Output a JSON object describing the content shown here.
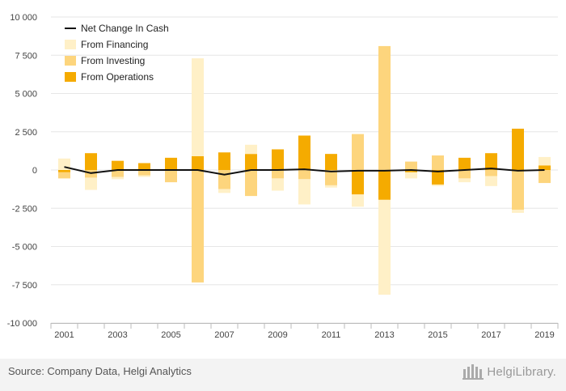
{
  "chart_data": {
    "type": "bar",
    "stacked": true,
    "categories": [
      "2001",
      "2002",
      "2003",
      "2004",
      "2005",
      "2006",
      "2007",
      "2008",
      "2009",
      "2010",
      "2011",
      "2012",
      "2013",
      "2014",
      "2015",
      "2016",
      "2017",
      "2018",
      "2019"
    ],
    "x_tick_labels": [
      "2001",
      "2003",
      "2005",
      "2007",
      "2009",
      "2011",
      "2013",
      "2015",
      "2017",
      "2019"
    ],
    "ylim": [
      -10000,
      10000
    ],
    "y_ticks": [
      -10000,
      -7500,
      -5000,
      -2500,
      0,
      2500,
      5000,
      7500,
      10000
    ],
    "y_tick_labels": [
      "-10 000",
      "-7 500",
      "-5 000",
      "-2 500",
      "0",
      "2 500",
      "5 000",
      "7 500",
      "10 000"
    ],
    "grid": true,
    "legend_position": "top-left",
    "series": [
      {
        "name": "From Operations",
        "color": "#f5ab00",
        "values": [
          -150,
          1100,
          600,
          450,
          800,
          900,
          1150,
          1050,
          1350,
          2250,
          1050,
          -1600,
          -1950,
          -150,
          -950,
          800,
          1100,
          2700,
          300
        ]
      },
      {
        "name": "From Investing",
        "color": "#fdd57d",
        "values": [
          -400,
          -500,
          -450,
          -350,
          -800,
          -7350,
          -1250,
          -1700,
          -550,
          -600,
          -1000,
          2350,
          8100,
          550,
          950,
          -550,
          -400,
          -2600,
          -850
        ]
      },
      {
        "name": "From Financing",
        "color": "#fff0c7",
        "values": [
          750,
          -800,
          -150,
          -100,
          0,
          6400,
          -250,
          600,
          -800,
          -1650,
          -150,
          -800,
          -6200,
          -400,
          -100,
          -250,
          -650,
          -200,
          550
        ]
      }
    ],
    "line": {
      "name": "Net Change In Cash",
      "color": "#111111",
      "values": [
        200,
        -200,
        0,
        0,
        0,
        0,
        -300,
        0,
        0,
        50,
        -100,
        -50,
        -50,
        0,
        -100,
        0,
        100,
        -50,
        0
      ]
    }
  },
  "footer": {
    "source": "Source: Company Data, Helgi Analytics",
    "logo_text": "HelgiLibrary."
  }
}
